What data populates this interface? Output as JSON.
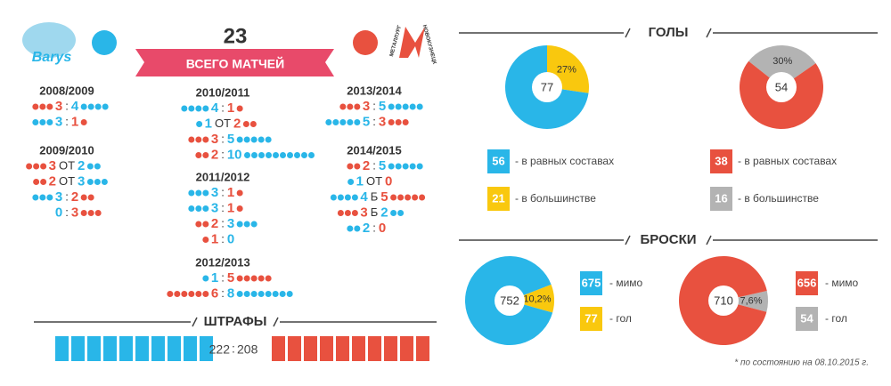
{
  "header": {
    "total": "23",
    "total_label": "ВСЕГО МАТЧЕЙ",
    "left_logo": "Barys",
    "right_logo_top": "МЕТАЛЛУРГ",
    "right_logo_bottom": "НОВОКУЗНЕЦК"
  },
  "colors": {
    "home_blue": "#29b6e8",
    "away_red": "#e8513f",
    "yellow": "#f9c80e",
    "gray": "#b3b3b3"
  },
  "seasons": [
    {
      "title": "2008/2009",
      "games": [
        {
          "home": "red",
          "left": 3,
          "sep": ":",
          "right": 4
        },
        {
          "home": "blue",
          "left": 3,
          "sep": ":",
          "right": 1
        }
      ]
    },
    {
      "title": "2009/2010",
      "games": [
        {
          "home": "red",
          "left": 3,
          "sep": "ОТ",
          "right": 2
        },
        {
          "home": "red",
          "left": 2,
          "sep": "ОТ",
          "right": 3
        },
        {
          "home": "blue",
          "left": 3,
          "sep": ":",
          "right": 2
        },
        {
          "home": "blue",
          "left": 0,
          "sep": ":",
          "right": 3
        }
      ]
    },
    {
      "title": "2010/2011",
      "games": [
        {
          "home": "blue",
          "left": 4,
          "sep": ":",
          "right": 1
        },
        {
          "home": "blue",
          "left": 1,
          "sep": "ОТ",
          "right": 2
        },
        {
          "home": "red",
          "left": 3,
          "sep": ":",
          "right": 5
        },
        {
          "home": "red",
          "left": 2,
          "sep": ":",
          "right": 10
        }
      ]
    },
    {
      "title": "2011/2012",
      "games": [
        {
          "home": "blue",
          "left": 3,
          "sep": ":",
          "right": 1
        },
        {
          "home": "blue",
          "left": 3,
          "sep": ":",
          "right": 1
        },
        {
          "home": "red",
          "left": 2,
          "sep": ":",
          "right": 3
        },
        {
          "home": "red",
          "left": 1,
          "sep": ":",
          "right": 0
        }
      ]
    },
    {
      "title": "2012/2013",
      "games": [
        {
          "home": "blue",
          "left": 1,
          "sep": ":",
          "right": 5
        },
        {
          "home": "red",
          "left": 6,
          "sep": ":",
          "right": 8
        }
      ]
    },
    {
      "title": "2013/2014",
      "games": [
        {
          "home": "red",
          "left": 3,
          "sep": ":",
          "right": 5
        },
        {
          "home": "blue",
          "left": 5,
          "sep": ":",
          "right": 3
        }
      ]
    },
    {
      "title": "2014/2015",
      "games": [
        {
          "home": "red",
          "left": 2,
          "sep": ":",
          "right": 5
        },
        {
          "home": "blue",
          "left": 1,
          "sep": "ОТ",
          "right": 0
        },
        {
          "home": "blue",
          "left": 4,
          "sep": "Б",
          "right": 5
        },
        {
          "home": "red",
          "left": 3,
          "sep": "Б",
          "right": 2
        },
        {
          "home": "blue",
          "left": 2,
          "sep": ":",
          "right": 0
        }
      ]
    }
  ],
  "penalties": {
    "title": "ШТРАФЫ",
    "left": 222,
    "sep": ":",
    "right": 208
  },
  "goals": {
    "title": "ГОЛЫ",
    "charts": [
      {
        "total": 77,
        "percent": {
          "value": 27,
          "label": "27%"
        },
        "segments": [
          {
            "value": 56,
            "color": "#29b6e8",
            "label": "- в равных составах"
          },
          {
            "value": 21,
            "color": "#f9c80e",
            "label": "- в большинстве"
          }
        ]
      },
      {
        "total": 54,
        "percent": {
          "value": 30,
          "label": "30%"
        },
        "segments": [
          {
            "value": 38,
            "color": "#e8513f",
            "label": "- в равных составах"
          },
          {
            "value": 16,
            "color": "#b3b3b3",
            "label": "- в большинстве"
          }
        ]
      }
    ]
  },
  "shots": {
    "title": "БРОСКИ",
    "charts": [
      {
        "total": 752,
        "percent": {
          "value": 10.2,
          "label": "10,2%"
        },
        "segments": [
          {
            "value": 675,
            "color": "#29b6e8",
            "label": "- мимо"
          },
          {
            "value": 77,
            "color": "#f9c80e",
            "label": "- гол"
          }
        ]
      },
      {
        "total": 710,
        "percent": {
          "value": 7.6,
          "label": "7,6%"
        },
        "segments": [
          {
            "value": 656,
            "color": "#e8513f",
            "label": "- мимо"
          },
          {
            "value": 54,
            "color": "#b3b3b3",
            "label": "- гол"
          }
        ]
      }
    ]
  },
  "footnote": "* по состоянию на 08.10.2015 г."
}
